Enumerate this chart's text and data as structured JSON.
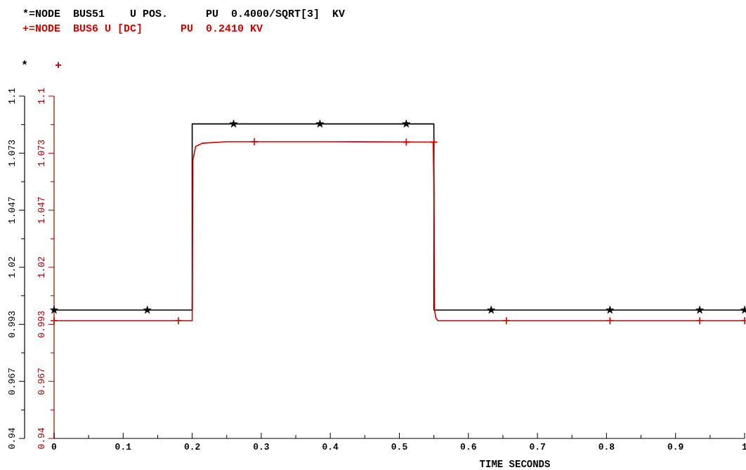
{
  "chart_data": {
    "type": "line",
    "xlabel": "TIME SECONDS",
    "ylabel": "*",
    "y2label": "+",
    "legend": "top left",
    "xlim": [
      0,
      1
    ],
    "xticks": [
      0,
      {
        "value": 0.05,
        "label": null
      },
      0.1,
      {
        "value": 0.15,
        "label": null
      },
      0.2,
      {
        "value": 0.25,
        "label": null
      },
      0.3,
      {
        "value": 0.35,
        "label": null
      },
      0.4,
      {
        "value": 0.45,
        "label": null
      },
      0.5,
      {
        "value": 0.55,
        "label": null
      },
      0.6,
      {
        "value": 0.65,
        "label": null
      },
      0.7,
      {
        "value": 0.75,
        "label": null
      },
      0.8,
      {
        "value": 0.85,
        "label": null
      },
      0.9,
      {
        "value": 0.95,
        "label": null
      },
      1
    ],
    "ylim": [
      0.94,
      1.1
    ],
    "yticks": [
      0.94,
      {
        "value": 0.95333,
        "label": null
      },
      {
        "value": 0.96667,
        "label": "0.967"
      },
      {
        "value": 0.98,
        "label": null
      },
      {
        "value": 0.99333,
        "label": "0.993"
      },
      {
        "value": 1.00667,
        "label": null
      },
      1.02,
      {
        "value": 1.03333,
        "label": null
      },
      {
        "value": 1.04667,
        "label": "1.047"
      },
      {
        "value": 1.06,
        "label": null
      },
      {
        "value": 1.07333,
        "label": "1.073"
      },
      {
        "value": 1.08667,
        "label": null
      },
      1.1
    ],
    "y2lim": [
      0.94,
      1.1
    ],
    "y2ticks": [
      0.94,
      {
        "value": 0.95333,
        "label": null
      },
      {
        "value": 0.96667,
        "label": "0.967"
      },
      {
        "value": 0.98,
        "label": null
      },
      {
        "value": 0.99333,
        "label": "0.993"
      },
      {
        "value": 1.00667,
        "label": null
      },
      1.02,
      {
        "value": 1.03333,
        "label": null
      },
      {
        "value": 1.04667,
        "label": "1.047"
      },
      {
        "value": 1.06,
        "label": null
      },
      {
        "value": 1.07333,
        "label": "1.073"
      },
      {
        "value": 1.08667,
        "label": null
      },
      1.1
    ],
    "series": [
      {
        "name": "*=NODE  BUS51    U POS.      PU  0.4000/SQRT[3]  KV",
        "color": "#000000",
        "x": [
          0,
          0.2,
          0.2,
          0.55,
          0.55,
          1
        ],
        "values": [
          1.0,
          1.0,
          1.087,
          1.087,
          1.0,
          1.0
        ]
      },
      {
        "name": "+=NODE  BUS6 U [DC]      PU  0.2410 KV",
        "color": "#d40000",
        "x": [
          0,
          0.2,
          0.201,
          0.205,
          0.215,
          0.25,
          0.4,
          0.549,
          0.55,
          0.551,
          0.553,
          0.556,
          1
        ],
        "values": [
          0.995,
          0.995,
          1.07,
          1.0765,
          1.078,
          1.0787,
          1.0787,
          1.0785,
          1.06,
          1.0,
          0.9962,
          0.995,
          0.995
        ]
      },
      {
        "color": "#000000",
        "type": "scatter",
        "marker": "star",
        "x": [
          0,
          0.135,
          0.26,
          0.385,
          0.51,
          0.633,
          0.805,
          0.935,
          1
        ],
        "values": [
          1.0,
          1.0,
          1.087,
          1.087,
          1.087,
          1.0,
          1.0,
          1.0,
          1.0
        ]
      },
      {
        "color": "#d40000",
        "type": "scatter",
        "marker": "cross",
        "x": [
          0,
          0.18,
          0.29,
          0.51,
          0.55,
          0.655,
          0.805,
          0.935,
          1
        ],
        "values": [
          0.995,
          0.995,
          1.0787,
          1.0785,
          1.0785,
          0.995,
          0.995,
          0.995,
          0.995
        ]
      }
    ]
  }
}
